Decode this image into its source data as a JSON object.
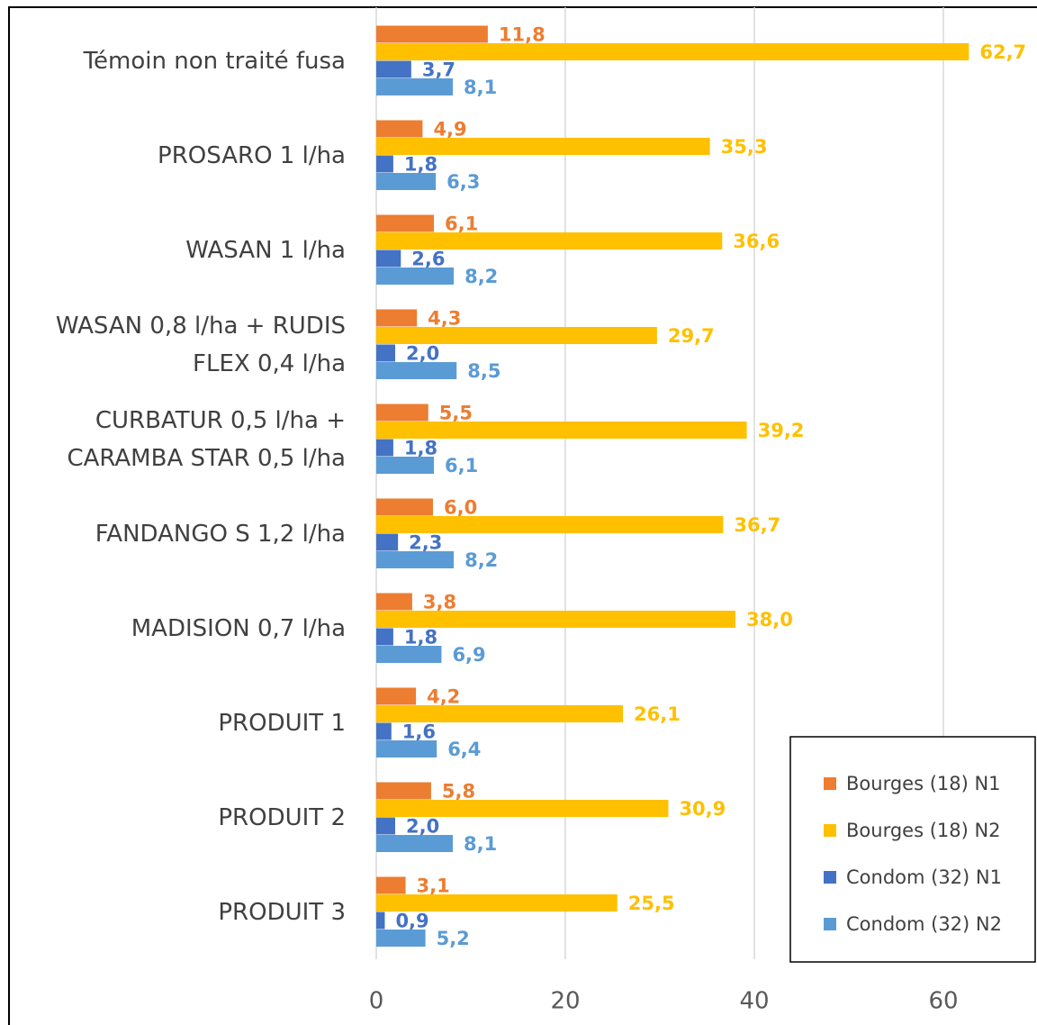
{
  "chart_data": {
    "type": "barh",
    "categories": [
      "Témoin non traité fusa",
      "PROSARO 1 l/ha",
      "WASAN 1 l/ha",
      "WASAN 0,8 l/ha + RUDIS FLEX 0,4 l/ha",
      "CURBATUR 0,5 l/ha + CARAMBA STAR 0,5 l/ha",
      "FANDANGO S 1,2 l/ha",
      "MADISION 0,7 l/ha",
      "PRODUIT 1",
      "PRODUIT 2",
      "PRODUIT 3"
    ],
    "series": [
      {
        "name": "Bourges (18) N1",
        "color": "#ed7d31",
        "values": [
          11.8,
          4.9,
          6.1,
          4.3,
          5.5,
          6.0,
          3.8,
          4.2,
          5.8,
          3.1
        ],
        "value_labels": [
          "11,8",
          "4,9",
          "6,1",
          "4,3",
          "5,5",
          "6,0",
          "3,8",
          "4,2",
          "5,8",
          "3,1"
        ]
      },
      {
        "name": "Bourges (18) N2",
        "color": "#ffc000",
        "values": [
          62.7,
          35.3,
          36.6,
          29.7,
          39.2,
          36.7,
          38.0,
          26.1,
          30.9,
          25.5
        ],
        "value_labels": [
          "62,7",
          "35,3",
          "36,6",
          "29,7",
          "39,2",
          "36,7",
          "38,0",
          "26,1",
          "30,9",
          "25,5"
        ]
      },
      {
        "name": "Condom (32) N1",
        "color": "#4472c4",
        "values": [
          3.7,
          1.8,
          2.6,
          2.0,
          1.8,
          2.3,
          1.8,
          1.6,
          2.0,
          0.9
        ],
        "value_labels": [
          "3,7",
          "1,8",
          "2,6",
          "2,0",
          "1,8",
          "2,3",
          "1,8",
          "1,6",
          "2,0",
          "0,9"
        ]
      },
      {
        "name": "Condom (32) N2",
        "color": "#5b9bd5",
        "values": [
          8.1,
          6.3,
          8.2,
          8.5,
          6.1,
          8.2,
          6.9,
          6.4,
          8.1,
          5.2
        ],
        "value_labels": [
          "8,1",
          "6,3",
          "8,2",
          "8,5",
          "6,1",
          "8,2",
          "6,9",
          "6,4",
          "8,1",
          "5,2"
        ]
      }
    ],
    "xlim": [
      0,
      70
    ],
    "xticks": [
      0,
      20,
      40,
      60
    ],
    "grid": true,
    "legend": "lower right"
  }
}
